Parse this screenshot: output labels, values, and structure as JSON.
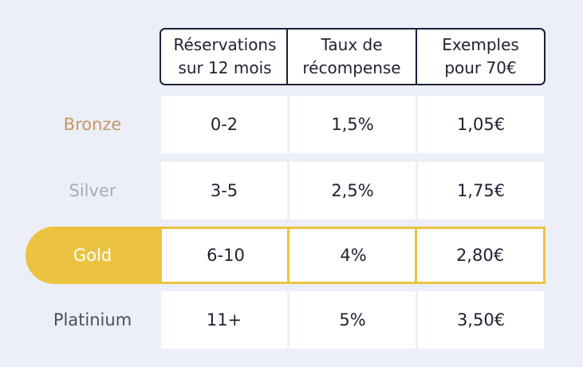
{
  "headers": [
    {
      "line1": "Réservations",
      "line2": "sur 12 mois"
    },
    {
      "line1": "Taux de",
      "line2": "récompense"
    },
    {
      "line1": "Exemples",
      "line2": "pour 70€"
    }
  ],
  "rows": [
    {
      "tier": "Bronze",
      "bookings": "0-2",
      "rate": "1,5%",
      "example": "1,05€"
    },
    {
      "tier": "Silver",
      "bookings": "3-5",
      "rate": "2,5%",
      "example": "1,75€"
    },
    {
      "tier": "Gold",
      "bookings": "6-10",
      "rate": "4%",
      "example": "2,80€"
    },
    {
      "tier": "Platinium",
      "bookings": "11+",
      "rate": "5%",
      "example": "3,50€"
    }
  ],
  "colors": {
    "bronze": "#c59867",
    "silver": "#a9acb4",
    "gold": "#ecc341",
    "platinium": "#4c4f5c",
    "header_border": "#1c2038",
    "background": "#eceff7"
  }
}
